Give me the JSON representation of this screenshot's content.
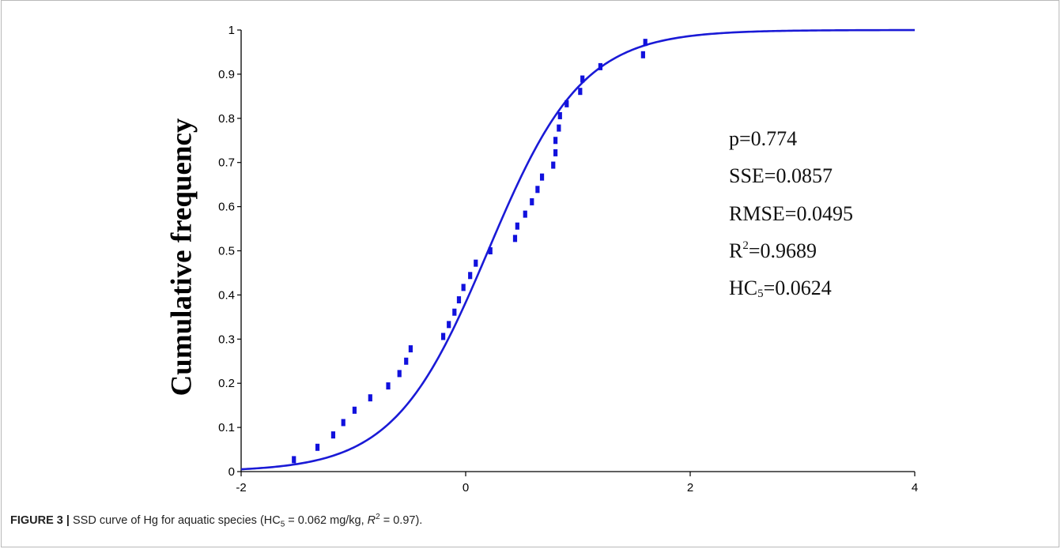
{
  "chart_data": {
    "type": "scatter",
    "title": "",
    "xlabel": "",
    "ylabel": "Cumulative frequency",
    "xlim": [
      -2,
      4
    ],
    "ylim": [
      0,
      1
    ],
    "x_ticks": [
      "-2",
      "0",
      "2",
      "4"
    ],
    "y_ticks": [
      "0",
      "0.1",
      "0.2",
      "0.3",
      "0.4",
      "0.5",
      "0.6",
      "0.7",
      "0.8",
      "0.9",
      "1"
    ],
    "grid": false,
    "colors": {
      "points": "#1111dd",
      "curve": "#1a1ad6",
      "axis": "#000000"
    },
    "series": [
      {
        "kind": "points",
        "points": [
          [
            -1.53,
            0.027
          ],
          [
            -1.32,
            0.055
          ],
          [
            -1.18,
            0.083
          ],
          [
            -1.09,
            0.111
          ],
          [
            -0.99,
            0.139
          ],
          [
            -0.85,
            0.167
          ],
          [
            -0.69,
            0.194
          ],
          [
            -0.59,
            0.222
          ],
          [
            -0.53,
            0.25
          ],
          [
            -0.49,
            0.278
          ],
          [
            -0.2,
            0.306
          ],
          [
            -0.15,
            0.333
          ],
          [
            -0.1,
            0.361
          ],
          [
            -0.06,
            0.389
          ],
          [
            -0.02,
            0.417
          ],
          [
            0.04,
            0.444
          ],
          [
            0.09,
            0.472
          ],
          [
            0.22,
            0.5
          ],
          [
            0.44,
            0.528
          ],
          [
            0.46,
            0.556
          ],
          [
            0.53,
            0.583
          ],
          [
            0.59,
            0.611
          ],
          [
            0.64,
            0.639
          ],
          [
            0.68,
            0.667
          ],
          [
            0.78,
            0.694
          ],
          [
            0.8,
            0.722
          ],
          [
            0.8,
            0.75
          ],
          [
            0.83,
            0.778
          ],
          [
            0.84,
            0.806
          ],
          [
            0.9,
            0.833
          ],
          [
            1.02,
            0.861
          ],
          [
            1.04,
            0.889
          ],
          [
            1.2,
            0.917
          ],
          [
            1.58,
            0.944
          ],
          [
            1.6,
            0.972
          ]
        ]
      },
      {
        "kind": "fitted-curve",
        "model": "logistic",
        "mu": 0.2,
        "scale": 0.42
      }
    ],
    "annotations": {
      "p": "p=0.774",
      "sse": "SSE=0.0857",
      "rmse": "RMSE=0.0495",
      "r2_base": "R",
      "r2_sup": "2",
      "r2_value": "=0.9689",
      "hc_base": "HC",
      "hc_sub": "5",
      "hc_value": "=0.0624"
    }
  },
  "caption": {
    "label": "FIGURE 3 |",
    "text_before": " SSD curve of Hg for aquatic species (HC",
    "sub": "5",
    "text_middle": " = 0.062 mg/kg, ",
    "r": "R",
    "sup": "2",
    "text_after": " = 0.97)."
  }
}
